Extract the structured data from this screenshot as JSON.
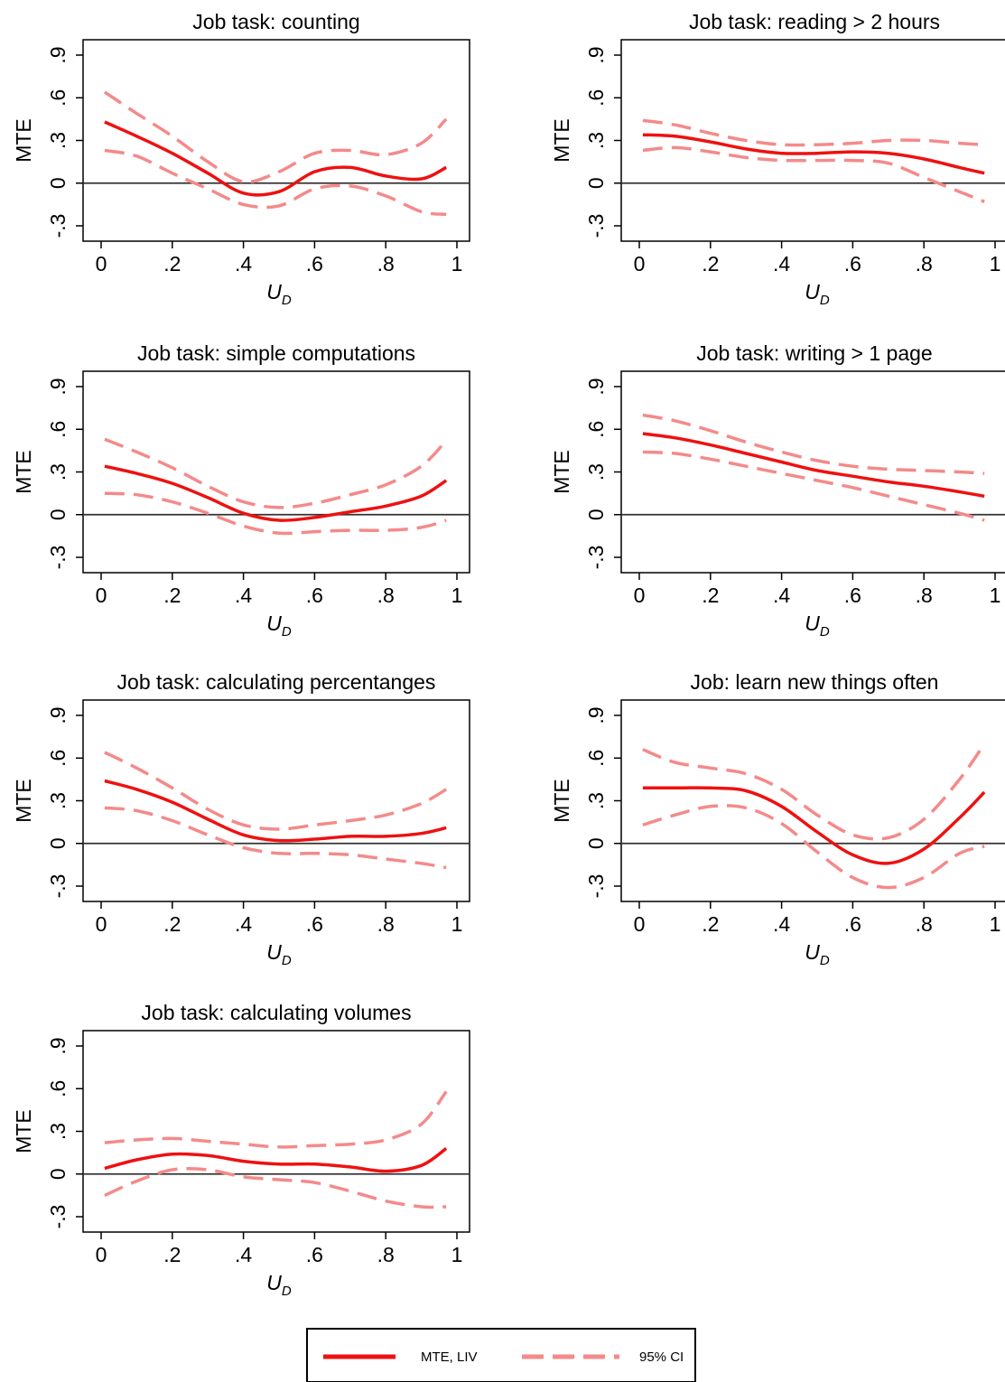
{
  "colors": {
    "mte": "#ee1111",
    "ci": "#f48a8a",
    "zero_line": "#333333"
  },
  "legend": {
    "position": "bottom-center",
    "mte_label": "MTE, LIV",
    "ci_label": "95% CI"
  },
  "chart_data": [
    {
      "type": "line",
      "title": "Job task: counting",
      "xlabel": "U",
      "xlabel_sub": "D",
      "ylabel": "MTE",
      "xlim": [
        0,
        1
      ],
      "ylim": [
        -0.3,
        0.9
      ],
      "xticks": [
        "0",
        ".2",
        ".4",
        ".6",
        ".8",
        "1"
      ],
      "yticks": [
        "-.3",
        "0",
        ".3",
        ".6",
        ".9"
      ],
      "x": [
        0.01,
        0.1,
        0.2,
        0.3,
        0.4,
        0.5,
        0.6,
        0.7,
        0.8,
        0.9,
        0.97
      ],
      "series": [
        {
          "name": "MTE, LIV",
          "values": [
            0.43,
            0.33,
            0.21,
            0.07,
            -0.07,
            -0.06,
            0.08,
            0.11,
            0.05,
            0.03,
            0.11
          ]
        },
        {
          "name": "95% CI",
          "values": [
            0.64,
            0.49,
            0.33,
            0.15,
            0.01,
            0.08,
            0.21,
            0.23,
            0.2,
            0.28,
            0.45
          ]
        },
        {
          "name": "95% CI",
          "values": [
            0.23,
            0.19,
            0.07,
            -0.04,
            -0.15,
            -0.16,
            -0.04,
            -0.02,
            -0.09,
            -0.2,
            -0.22
          ]
        }
      ]
    },
    {
      "type": "line",
      "title": "Job task: reading > 2 hours",
      "xlabel": "U",
      "xlabel_sub": "D",
      "ylabel": "MTE",
      "xlim": [
        0,
        1
      ],
      "ylim": [
        -0.3,
        0.9
      ],
      "xticks": [
        "0",
        ".2",
        ".4",
        ".6",
        ".8",
        "1"
      ],
      "yticks": [
        "-.3",
        "0",
        ".3",
        ".6",
        ".9"
      ],
      "x": [
        0.01,
        0.1,
        0.2,
        0.3,
        0.4,
        0.5,
        0.6,
        0.7,
        0.8,
        0.9,
        0.97
      ],
      "series": [
        {
          "name": "MTE, LIV",
          "values": [
            0.34,
            0.33,
            0.29,
            0.24,
            0.21,
            0.21,
            0.22,
            0.21,
            0.17,
            0.11,
            0.07
          ]
        },
        {
          "name": "95% CI",
          "values": [
            0.44,
            0.41,
            0.35,
            0.3,
            0.27,
            0.27,
            0.28,
            0.3,
            0.3,
            0.28,
            0.27
          ]
        },
        {
          "name": "95% CI",
          "values": [
            0.23,
            0.25,
            0.22,
            0.18,
            0.16,
            0.16,
            0.16,
            0.14,
            0.04,
            -0.06,
            -0.13
          ]
        }
      ]
    },
    {
      "type": "line",
      "title": "Job task: simple computations",
      "xlabel": "U",
      "xlabel_sub": "D",
      "ylabel": "MTE",
      "xlim": [
        0,
        1
      ],
      "ylim": [
        -0.3,
        0.9
      ],
      "xticks": [
        "0",
        ".2",
        ".4",
        ".6",
        ".8",
        "1"
      ],
      "yticks": [
        "-.3",
        "0",
        ".3",
        ".6",
        ".9"
      ],
      "x": [
        0.01,
        0.1,
        0.2,
        0.3,
        0.4,
        0.5,
        0.6,
        0.7,
        0.8,
        0.9,
        0.97
      ],
      "series": [
        {
          "name": "MTE, LIV",
          "values": [
            0.34,
            0.29,
            0.22,
            0.12,
            0.01,
            -0.04,
            -0.02,
            0.02,
            0.06,
            0.13,
            0.24
          ]
        },
        {
          "name": "95% CI",
          "values": [
            0.53,
            0.44,
            0.33,
            0.2,
            0.09,
            0.05,
            0.08,
            0.14,
            0.21,
            0.34,
            0.52
          ]
        },
        {
          "name": "95% CI",
          "values": [
            0.15,
            0.14,
            0.09,
            0.01,
            -0.08,
            -0.13,
            -0.12,
            -0.11,
            -0.11,
            -0.09,
            -0.04
          ]
        }
      ]
    },
    {
      "type": "line",
      "title": "Job task: writing > 1 page",
      "xlabel": "U",
      "xlabel_sub": "D",
      "ylabel": "MTE",
      "xlim": [
        0,
        1
      ],
      "ylim": [
        -0.3,
        0.9
      ],
      "xticks": [
        "0",
        ".2",
        ".4",
        ".6",
        ".8",
        "1"
      ],
      "yticks": [
        "-.3",
        "0",
        ".3",
        ".6",
        ".9"
      ],
      "x": [
        0.01,
        0.1,
        0.2,
        0.3,
        0.4,
        0.5,
        0.6,
        0.7,
        0.8,
        0.9,
        0.97
      ],
      "series": [
        {
          "name": "MTE, LIV",
          "values": [
            0.57,
            0.54,
            0.49,
            0.43,
            0.37,
            0.31,
            0.27,
            0.23,
            0.2,
            0.16,
            0.13
          ]
        },
        {
          "name": "95% CI",
          "values": [
            0.7,
            0.66,
            0.59,
            0.51,
            0.44,
            0.38,
            0.34,
            0.32,
            0.31,
            0.3,
            0.29
          ]
        },
        {
          "name": "95% CI",
          "values": [
            0.44,
            0.43,
            0.39,
            0.34,
            0.29,
            0.24,
            0.19,
            0.13,
            0.07,
            0.01,
            -0.04
          ]
        }
      ]
    },
    {
      "type": "line",
      "title": "Job task: calculating percentanges",
      "xlabel": "U",
      "xlabel_sub": "D",
      "ylabel": "MTE",
      "xlim": [
        0,
        1
      ],
      "ylim": [
        -0.3,
        0.9
      ],
      "xticks": [
        "0",
        ".2",
        ".4",
        ".6",
        ".8",
        "1"
      ],
      "yticks": [
        "-.3",
        "0",
        ".3",
        ".6",
        ".9"
      ],
      "x": [
        0.01,
        0.1,
        0.2,
        0.3,
        0.4,
        0.5,
        0.6,
        0.7,
        0.8,
        0.9,
        0.97
      ],
      "series": [
        {
          "name": "MTE, LIV",
          "values": [
            0.44,
            0.38,
            0.29,
            0.17,
            0.06,
            0.02,
            0.03,
            0.05,
            0.05,
            0.07,
            0.11
          ]
        },
        {
          "name": "95% CI",
          "values": [
            0.64,
            0.53,
            0.39,
            0.24,
            0.13,
            0.1,
            0.13,
            0.16,
            0.2,
            0.28,
            0.38
          ]
        },
        {
          "name": "95% CI",
          "values": [
            0.25,
            0.23,
            0.16,
            0.06,
            -0.03,
            -0.07,
            -0.07,
            -0.08,
            -0.11,
            -0.14,
            -0.17
          ]
        }
      ]
    },
    {
      "type": "line",
      "title": "Job: learn new things often",
      "xlabel": "U",
      "xlabel_sub": "D",
      "ylabel": "MTE",
      "xlim": [
        0,
        1
      ],
      "ylim": [
        -0.3,
        0.9
      ],
      "xticks": [
        "0",
        ".2",
        ".4",
        ".6",
        ".8",
        "1"
      ],
      "yticks": [
        "-.3",
        "0",
        ".3",
        ".6",
        ".9"
      ],
      "x": [
        0.01,
        0.1,
        0.2,
        0.3,
        0.4,
        0.5,
        0.6,
        0.7,
        0.8,
        0.9,
        0.97
      ],
      "series": [
        {
          "name": "MTE, LIV",
          "values": [
            0.39,
            0.39,
            0.39,
            0.37,
            0.26,
            0.08,
            -0.08,
            -0.14,
            -0.04,
            0.18,
            0.36
          ]
        },
        {
          "name": "95% CI",
          "values": [
            0.66,
            0.57,
            0.53,
            0.49,
            0.38,
            0.2,
            0.06,
            0.04,
            0.17,
            0.45,
            0.7
          ]
        },
        {
          "name": "95% CI",
          "values": [
            0.13,
            0.2,
            0.26,
            0.25,
            0.14,
            -0.06,
            -0.24,
            -0.31,
            -0.24,
            -0.07,
            -0.02
          ]
        }
      ]
    },
    {
      "type": "line",
      "title": "Job task: calculating volumes",
      "xlabel": "U",
      "xlabel_sub": "D",
      "ylabel": "MTE",
      "xlim": [
        0,
        1
      ],
      "ylim": [
        -0.3,
        0.9
      ],
      "xticks": [
        "0",
        ".2",
        ".4",
        ".6",
        ".8",
        "1"
      ],
      "yticks": [
        "-.3",
        "0",
        ".3",
        ".6",
        ".9"
      ],
      "x": [
        0.01,
        0.1,
        0.2,
        0.3,
        0.4,
        0.5,
        0.6,
        0.7,
        0.8,
        0.9,
        0.97
      ],
      "series": [
        {
          "name": "MTE, LIV",
          "values": [
            0.04,
            0.1,
            0.14,
            0.13,
            0.09,
            0.07,
            0.07,
            0.05,
            0.02,
            0.06,
            0.18
          ]
        },
        {
          "name": "95% CI",
          "values": [
            0.22,
            0.24,
            0.25,
            0.23,
            0.21,
            0.19,
            0.2,
            0.21,
            0.24,
            0.35,
            0.58
          ]
        },
        {
          "name": "95% CI",
          "values": [
            -0.15,
            -0.05,
            0.03,
            0.03,
            -0.02,
            -0.04,
            -0.06,
            -0.12,
            -0.19,
            -0.23,
            -0.23
          ]
        }
      ]
    }
  ]
}
